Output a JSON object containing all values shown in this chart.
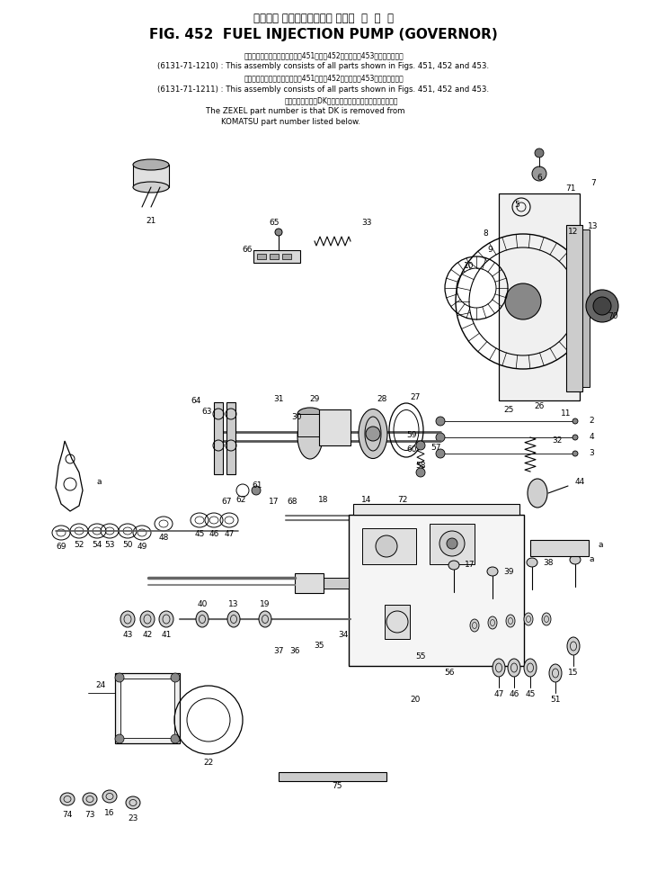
{
  "title_japanese": "フェエル インジェクション ポンプ  ガ  バ  ナ",
  "title_english": "FIG. 452  FUEL INJECTION PUMP (GOVERNOR)",
  "bg_color": "#ffffff",
  "line_color": "#000000",
  "note1_jp": "このアセンブリの構成部品は第451図、第452図および第453図を含みます。",
  "note1_en": "(6131-71-1210) : This assembly consists of all parts shown in Figs. 451, 452 and 453.",
  "note2_jp": "このアセンブリの構成部品は第451図、第452図および第453図を含みます。",
  "note2_en": "(6131-71-1211) : This assembly consists of all parts shown in Figs. 451, 452 and 453.",
  "note3_jp": "品番のメーカ記号DKを除いたものがゼクセルの品番です。",
  "note3_en1": "The ZEXEL part number is that DK is removed from",
  "note3_en2": "KOMATSU part number listed below."
}
